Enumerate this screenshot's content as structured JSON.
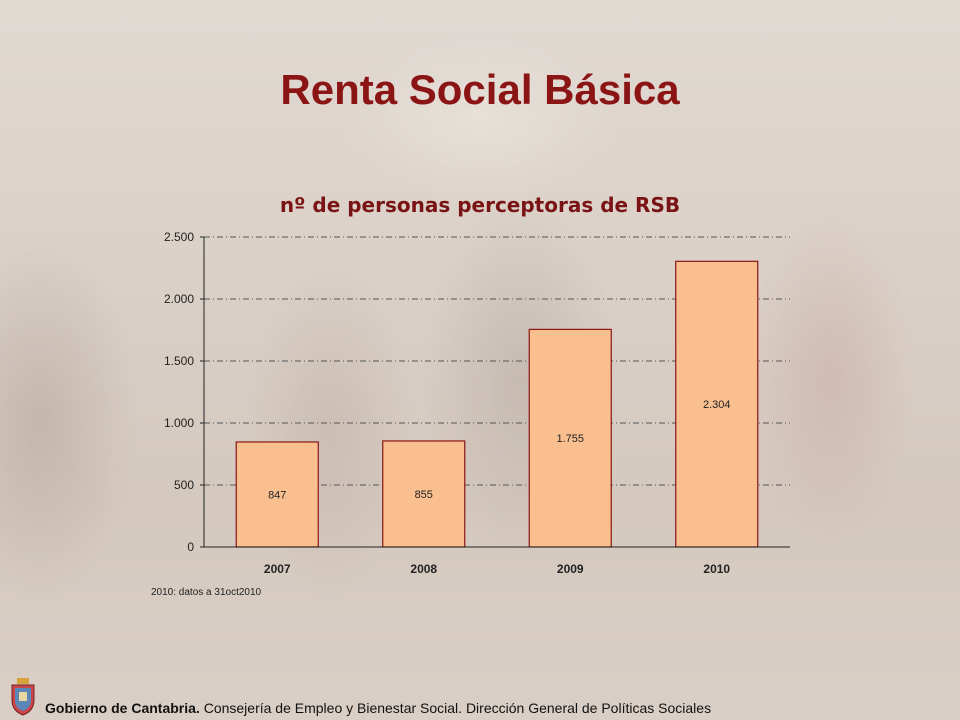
{
  "slide": {
    "title": "Renta Social Básica",
    "footnote": "2010: datos a 31oct2010",
    "footer_org": "Gobierno de Cantabria.",
    "footer_dept": " Consejería de Empleo y Bienestar Social. Dirección General de Políticas Sociales"
  },
  "chart_data": {
    "type": "bar",
    "title": "nº de personas perceptoras de RSB",
    "categories": [
      "2007",
      "2008",
      "2009",
      "2010"
    ],
    "values": [
      847,
      855,
      1755,
      2304
    ],
    "value_labels": [
      "847",
      "855",
      "1.755",
      "2.304"
    ],
    "ylim": [
      0,
      2500
    ],
    "yticks": [
      0,
      500,
      1000,
      1500,
      2000,
      2500
    ],
    "ytick_labels": [
      "0",
      "500",
      "1.000",
      "1.500",
      "2.000",
      "2.500"
    ],
    "grid": true,
    "bar_color": "#f9bf8f",
    "bar_edge": "#8b1414"
  }
}
